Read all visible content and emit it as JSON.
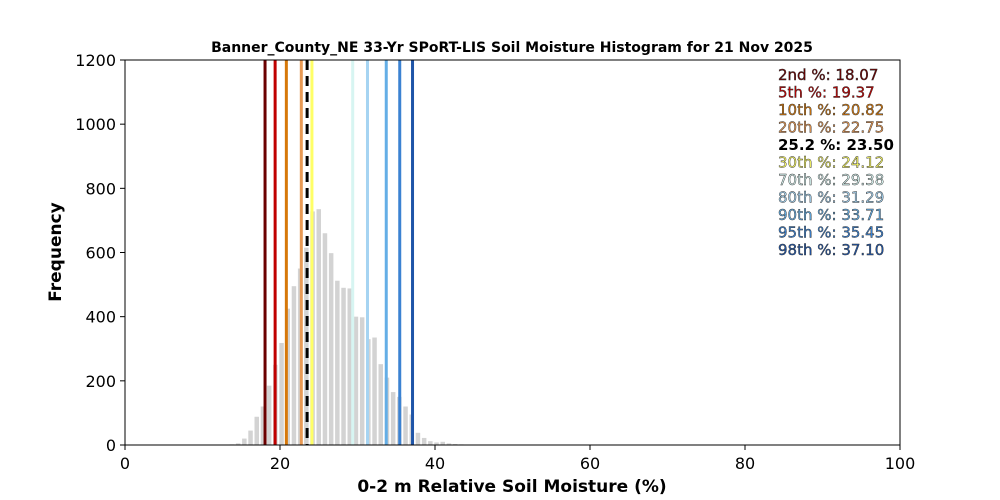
{
  "chart_data": {
    "type": "bar",
    "title": "Banner_County_NE 33-Yr SPoRT-LIS Soil Moisture Histogram for 21 Nov 2025",
    "xlabel": "0-2 m Relative Soil Moisture (%)",
    "ylabel": "Frequency",
    "xlim": [
      0,
      100
    ],
    "ylim": [
      0,
      1200
    ],
    "xticks": [
      0,
      20,
      40,
      60,
      80,
      100
    ],
    "yticks": [
      0,
      200,
      400,
      600,
      800,
      1000,
      1200
    ],
    "grid": false,
    "legend_position": "top-right",
    "bar_color": "#d3d3d3",
    "histogram": {
      "bin_centers": [
        13.0,
        13.8,
        14.6,
        15.4,
        16.2,
        17.0,
        17.8,
        18.6,
        19.4,
        20.2,
        21.0,
        21.8,
        22.6,
        23.4,
        24.2,
        25.0,
        25.8,
        26.6,
        27.4,
        28.2,
        29.0,
        29.8,
        30.6,
        31.4,
        32.2,
        33.0,
        33.8,
        34.6,
        35.4,
        36.2,
        37.0,
        37.8,
        38.6,
        39.4,
        40.2,
        41.0,
        41.8,
        42.6,
        43.4,
        44.2,
        45.0
      ],
      "counts": [
        1,
        2,
        5,
        20,
        45,
        88,
        120,
        185,
        250,
        318,
        425,
        495,
        550,
        615,
        728,
        735,
        660,
        598,
        512,
        490,
        488,
        400,
        398,
        330,
        335,
        252,
        210,
        165,
        150,
        120,
        95,
        38,
        22,
        12,
        8,
        10,
        5,
        3,
        2,
        1,
        1
      ]
    },
    "percentiles": [
      {
        "label": "2nd %: 18.07",
        "value": 18.07,
        "color": "#6b0000",
        "style": "solid"
      },
      {
        "label": "5th %: 19.37",
        "value": 19.37,
        "color": "#c00000",
        "style": "solid"
      },
      {
        "label": "10th %: 20.82",
        "value": 20.82,
        "color": "#d6780a",
        "style": "solid"
      },
      {
        "label": "20th %: 22.75",
        "value": 22.75,
        "color": "#e89a55",
        "style": "solid"
      },
      {
        "label": "25.2 %: 23.50",
        "value": 23.5,
        "color": "#000000",
        "style": "dashed"
      },
      {
        "label": "30th %: 24.12",
        "value": 24.12,
        "color": "#ffff66",
        "style": "solid"
      },
      {
        "label": "70th %: 29.38",
        "value": 29.38,
        "color": "#d7f5f2",
        "style": "solid"
      },
      {
        "label": "80th %: 31.29",
        "value": 31.29,
        "color": "#a6d4f2",
        "style": "solid"
      },
      {
        "label": "90th %: 33.71",
        "value": 33.71,
        "color": "#64aee6",
        "style": "solid"
      },
      {
        "label": "95th %: 35.45",
        "value": 35.45,
        "color": "#3b82d2",
        "style": "solid"
      },
      {
        "label": "98th %: 37.10",
        "value": 37.1,
        "color": "#1f55a8",
        "style": "solid"
      }
    ]
  }
}
